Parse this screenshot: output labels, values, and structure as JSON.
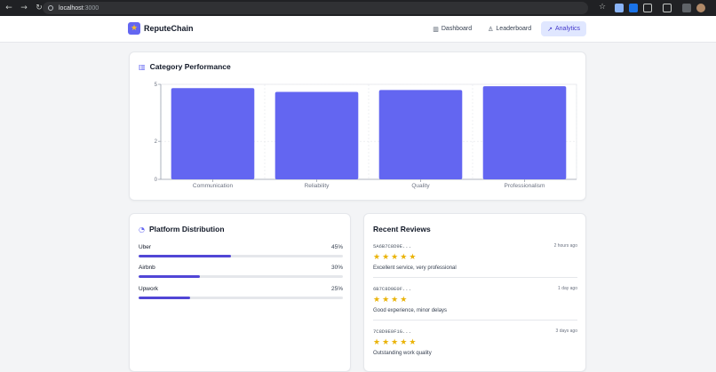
{
  "browser": {
    "url_host": "localhost",
    "url_port": ":3000"
  },
  "header": {
    "brand": "ReputeChain",
    "nav": [
      {
        "label": "Dashboard",
        "icon": "bar-chart-icon",
        "active": false
      },
      {
        "label": "Leaderboard",
        "icon": "trophy-icon",
        "active": false
      },
      {
        "label": "Analytics",
        "icon": "trending-up-icon",
        "active": true
      }
    ]
  },
  "performance": {
    "title": "Category Performance"
  },
  "chart_data": {
    "type": "bar",
    "categories": [
      "Communication",
      "Reliability",
      "Quality",
      "Professionalism"
    ],
    "values": [
      4.8,
      4.6,
      4.7,
      4.9
    ],
    "ylim": [
      0,
      5
    ],
    "yticks": [
      "0",
      "2",
      "5"
    ],
    "grid": true,
    "bar_color": "#6366f1"
  },
  "distribution": {
    "title": "Platform Distribution",
    "items": [
      {
        "name": "Uber",
        "pct_label": "45%",
        "fraction": 0.45
      },
      {
        "name": "Airbnb",
        "pct_label": "30%",
        "fraction": 0.3
      },
      {
        "name": "Upwork",
        "pct_label": "25%",
        "fraction": 0.25
      }
    ]
  },
  "reviews": {
    "title": "Recent Reviews",
    "items": [
      {
        "address": "5A6B7C8D9E...",
        "time": "2 hours ago",
        "rating": 5,
        "text": "Excellent service, very professional"
      },
      {
        "address": "6B7C8D9E0F...",
        "time": "1 day ago",
        "rating": 4,
        "text": "Good experience, minor delays"
      },
      {
        "address": "7C8D9E0F1G...",
        "time": "3 days ago",
        "rating": 5,
        "text": "Outstanding work quality"
      }
    ]
  },
  "colors": {
    "accent": "#6366f1",
    "progress": "#5146d6",
    "star": "#eab308"
  }
}
